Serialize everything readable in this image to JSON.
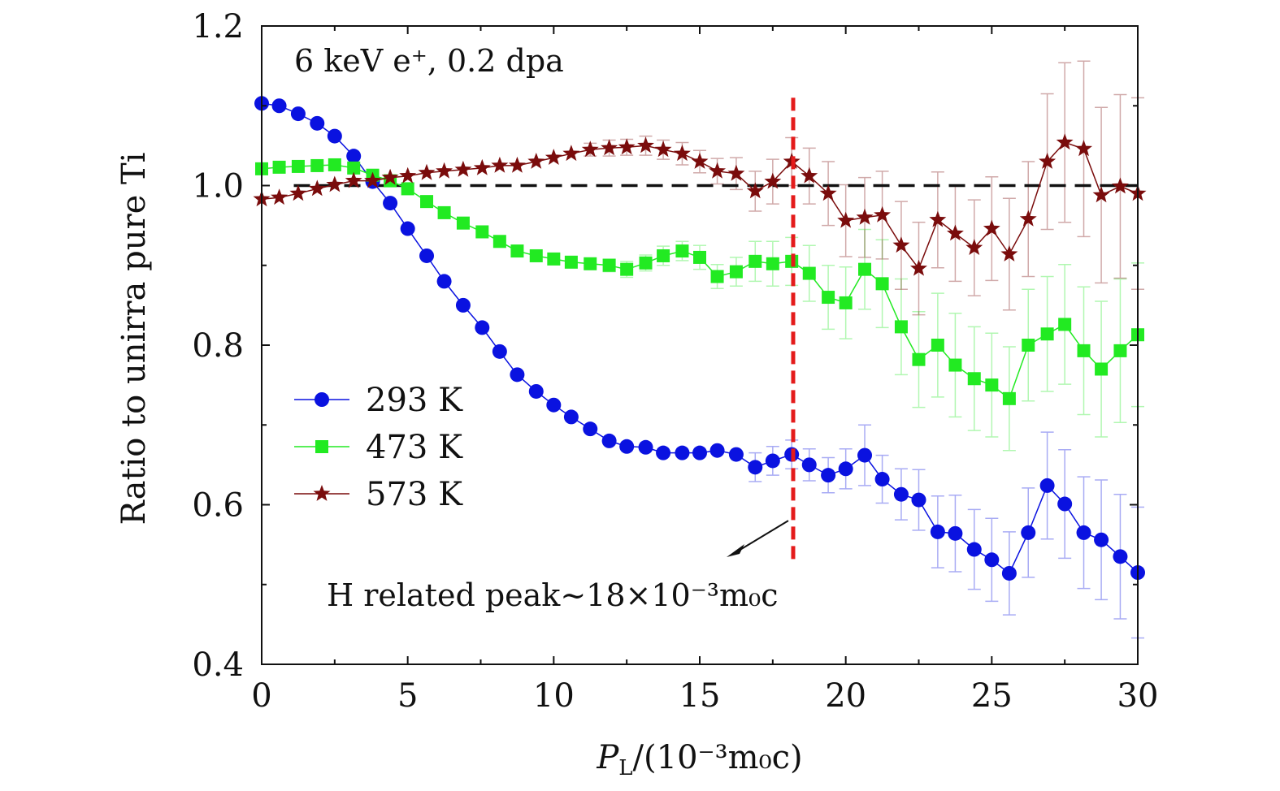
{
  "chart_data": {
    "type": "scatter",
    "title": "",
    "annotation_top": "6 keV e⁺, 0.2 dpa",
    "annotation_peak": "H related peak∼18×10⁻³m₀c",
    "xlabel": "P_L/(10⁻³m₀c)",
    "xlabel_main": "P",
    "xlabel_sub": "L",
    "xlabel_rest": "/(10⁻³m₀c)",
    "ylabel": "Ratio to unirra pure Ti",
    "xlim": [
      0,
      30
    ],
    "ylim": [
      0.4,
      1.2
    ],
    "xticks": [
      0,
      5,
      10,
      15,
      20,
      25,
      30
    ],
    "yticks": [
      0.4,
      0.6,
      0.8,
      1.0,
      1.2
    ],
    "xtick_labels": [
      "0",
      "5",
      "10",
      "15",
      "20",
      "25",
      "30"
    ],
    "ytick_labels": [
      "0.4",
      "0.6",
      "0.8",
      "1.0",
      "1.2"
    ],
    "reference_line_y": 1.0,
    "peak_marker_x": 18.2,
    "peak_marker_range": [
      0.53,
      1.11
    ],
    "x": [
      0.0,
      0.6,
      1.25,
      1.9,
      2.5,
      3.15,
      3.8,
      4.4,
      5.0,
      5.65,
      6.25,
      6.9,
      7.55,
      8.15,
      8.75,
      9.4,
      10.0,
      10.6,
      11.25,
      11.9,
      12.5,
      13.15,
      13.75,
      14.4,
      15.0,
      15.6,
      16.25,
      16.9,
      17.5,
      18.15,
      18.75,
      19.4,
      20.0,
      20.65,
      21.25,
      21.9,
      22.5,
      23.15,
      23.75,
      24.4,
      25.0,
      25.6,
      26.25,
      26.9,
      27.5,
      28.15,
      28.75,
      29.4,
      30.0
    ],
    "series": [
      {
        "name": "293 K",
        "label": "293 K",
        "color": "#0a12e0",
        "marker": "circle",
        "values": [
          1.103,
          1.1,
          1.09,
          1.078,
          1.062,
          1.037,
          1.005,
          0.978,
          0.946,
          0.912,
          0.88,
          0.85,
          0.822,
          0.792,
          0.763,
          0.742,
          0.725,
          0.71,
          0.695,
          0.68,
          0.673,
          0.672,
          0.665,
          0.665,
          0.665,
          0.668,
          0.663,
          0.647,
          0.655,
          0.663,
          0.65,
          0.637,
          0.645,
          0.662,
          0.632,
          0.613,
          0.606,
          0.566,
          0.564,
          0.544,
          0.531,
          0.514,
          0.565,
          0.624,
          0.601,
          0.565,
          0.556,
          0.535,
          0.515
        ],
        "errors": [
          0,
          0,
          0,
          0,
          0,
          0,
          0,
          0,
          0,
          0,
          0,
          0,
          0,
          0,
          0,
          0,
          0,
          0,
          0,
          0,
          0,
          0,
          0,
          0,
          0,
          0,
          0,
          0.018,
          0.018,
          0.018,
          0.02,
          0.022,
          0.025,
          0.038,
          0.03,
          0.032,
          0.038,
          0.045,
          0.048,
          0.05,
          0.052,
          0.052,
          0.056,
          0.067,
          0.068,
          0.07,
          0.075,
          0.078,
          0.082
        ]
      },
      {
        "name": "473 K",
        "label": "473 K",
        "color": "#22ea22",
        "marker": "square",
        "values": [
          1.021,
          1.023,
          1.024,
          1.025,
          1.026,
          1.022,
          1.013,
          1.006,
          0.996,
          0.98,
          0.966,
          0.953,
          0.942,
          0.93,
          0.918,
          0.912,
          0.908,
          0.904,
          0.902,
          0.9,
          0.895,
          0.903,
          0.912,
          0.918,
          0.91,
          0.886,
          0.892,
          0.905,
          0.902,
          0.905,
          0.89,
          0.86,
          0.853,
          0.895,
          0.877,
          0.823,
          0.782,
          0.8,
          0.775,
          0.758,
          0.75,
          0.733,
          0.8,
          0.814,
          0.826,
          0.793,
          0.77,
          0.793,
          0.813
        ],
        "errors": [
          0,
          0,
          0,
          0,
          0,
          0,
          0,
          0,
          0,
          0,
          0,
          0,
          0,
          0,
          0,
          0,
          0,
          0,
          0,
          0.008,
          0.01,
          0.01,
          0.012,
          0.012,
          0.015,
          0.015,
          0.018,
          0.025,
          0.028,
          0.03,
          0.035,
          0.04,
          0.045,
          0.05,
          0.055,
          0.06,
          0.06,
          0.065,
          0.065,
          0.065,
          0.065,
          0.065,
          0.07,
          0.072,
          0.075,
          0.08,
          0.085,
          0.09,
          0.09
        ]
      },
      {
        "name": "573 K",
        "label": "573 K",
        "color": "#7a0c0c",
        "marker": "star",
        "values": [
          0.983,
          0.985,
          0.99,
          0.996,
          1.001,
          1.006,
          1.006,
          1.01,
          1.012,
          1.016,
          1.018,
          1.02,
          1.022,
          1.025,
          1.025,
          1.03,
          1.035,
          1.04,
          1.045,
          1.047,
          1.048,
          1.05,
          1.045,
          1.04,
          1.03,
          1.018,
          1.015,
          0.993,
          1.005,
          1.03,
          1.012,
          0.99,
          0.956,
          0.96,
          0.963,
          0.925,
          0.896,
          0.957,
          0.94,
          0.922,
          0.946,
          0.914,
          0.958,
          1.03,
          1.054,
          1.046,
          0.988,
          0.999,
          0.99
        ],
        "errors": [
          0,
          0,
          0,
          0,
          0,
          0,
          0,
          0,
          0,
          0,
          0,
          0,
          0,
          0,
          0,
          0,
          0,
          0,
          0.008,
          0.01,
          0.01,
          0.012,
          0.012,
          0.014,
          0.014,
          0.016,
          0.02,
          0.025,
          0.028,
          0.03,
          0.035,
          0.04,
          0.045,
          0.05,
          0.055,
          0.055,
          0.058,
          0.06,
          0.06,
          0.06,
          0.065,
          0.07,
          0.072,
          0.085,
          0.1,
          0.11,
          0.11,
          0.115,
          0.12
        ]
      }
    ],
    "legend_position": "center-left"
  }
}
